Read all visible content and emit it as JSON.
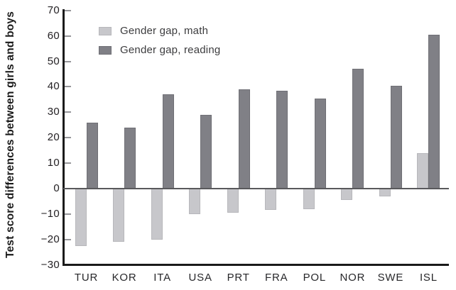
{
  "chart_data": {
    "type": "bar",
    "title": "",
    "xlabel": "",
    "ylabel": "Test score differences between girls and boys",
    "categories": [
      "TUR",
      "KOR",
      "ITA",
      "USA",
      "PRT",
      "FRA",
      "POL",
      "NOR",
      "SWE",
      "ISL"
    ],
    "series": [
      {
        "name": "Gender gap, math",
        "color": "#c7c7cb",
        "border_color": "#b7b7bb",
        "values": [
          -22.5,
          -21,
          -20,
          -10,
          -9.5,
          -8.5,
          -8,
          -4.5,
          -3,
          14
        ]
      },
      {
        "name": "Gender gap, reading",
        "color": "#808086",
        "border_color": "#6f6f75",
        "values": [
          26,
          24,
          37,
          29,
          39,
          38.5,
          35.5,
          47,
          40.5,
          60.5
        ]
      }
    ],
    "ylim": [
      -30,
      70
    ],
    "yticks": [
      70,
      60,
      50,
      40,
      30,
      20,
      10,
      0,
      -10,
      -20,
      -30
    ],
    "ytick_labels": [
      "70",
      "60",
      "50",
      "40",
      "30",
      "20",
      "10",
      "0",
      "−10",
      "−20",
      "−30"
    ],
    "grid": false,
    "zero_line": true,
    "legend_position": "top-left-inside"
  },
  "colors": {
    "background": "#ffffff",
    "axis": "#1a1a1a",
    "tick_mark": "#96969a",
    "zero_line": "#59595c",
    "tick_text": "#242124",
    "category_text": "#27272a",
    "legend_text": "#3c3c3e"
  }
}
